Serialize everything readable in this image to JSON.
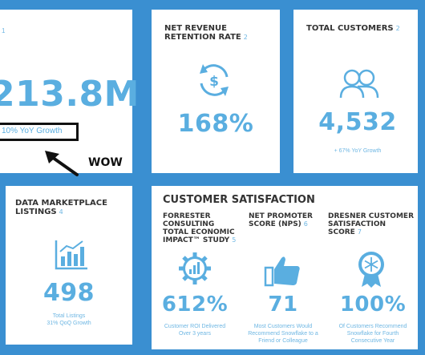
{
  "colors": {
    "background": "#3a8fd1",
    "accent": "#5aaee0",
    "heading": "#333333",
    "annotation": "#111111"
  },
  "card_revenue": {
    "footnote": "1",
    "value": "213.8M",
    "growth": "10% YoY Growth",
    "annotation": "WOW"
  },
  "card_nrr": {
    "title": "NET REVENUE RETENTION RATE",
    "footnote": "2",
    "icon": "dollar-cycle-icon",
    "value": "168%"
  },
  "card_customers": {
    "title": "TOTAL CUSTOMERS",
    "footnote": "2",
    "icon": "people-icon",
    "value": "4,532",
    "growth": "+ 67% YoY Growth"
  },
  "card_marketplace": {
    "title": "DATA MARKETPLACE LISTINGS",
    "footnote": "4",
    "icon": "bar-chart-icon",
    "value": "498",
    "caption_line1": "Total Listings",
    "caption_line2": "31% QoQ Growth"
  },
  "card_satisfaction": {
    "title": "CUSTOMER SATISFACTION",
    "columns": [
      {
        "title": "FORRESTER CONSULTING TOTAL ECONOMIC IMPACT™ STUDY",
        "footnote": "5",
        "icon": "gear-chart-icon",
        "value": "612%",
        "caption_line1": "Customer ROI Delivered",
        "caption_line2": "Over 3 years",
        "caption_line3": ""
      },
      {
        "title": "NET PROMOTER SCORE (NPS)",
        "footnote": "6",
        "icon": "thumbs-up-icon",
        "value": "71",
        "caption_line1": "Most Customers Would",
        "caption_line2": "Recommend Snowflake to a",
        "caption_line3": "Friend or Colleague"
      },
      {
        "title": "DRESNER CUSTOMER SATISFACTION SCORE",
        "footnote": "7",
        "icon": "award-badge-icon",
        "value": "100%",
        "caption_line1": "Of Customers Recommend",
        "caption_line2": "Snowflake for Fourth",
        "caption_line3": "Consecutive Year"
      }
    ]
  }
}
